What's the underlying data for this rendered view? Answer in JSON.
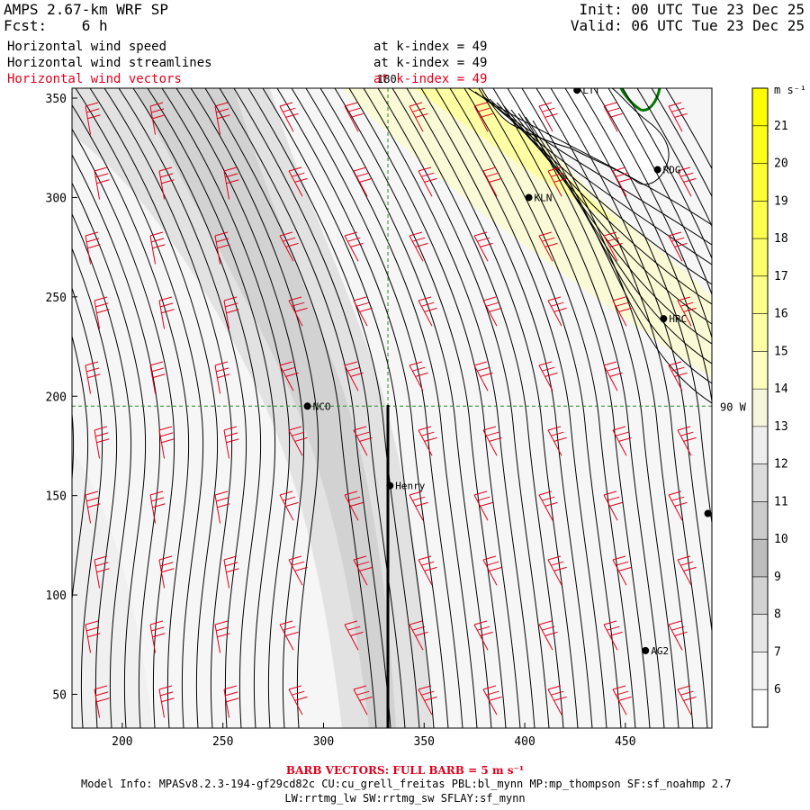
{
  "header": {
    "model": "AMPS 2.67-km WRF SP",
    "fcst_label": "Fcst:",
    "fcst_value": "6 h",
    "init": "Init: 00 UTC Tue 23 Dec 25",
    "valid": "Valid: 06 UTC Tue 23 Dec 25",
    "fields": [
      {
        "name": "Horizontal wind speed",
        "level": "at k-index = 49",
        "color": "#000000"
      },
      {
        "name": "Horizontal wind streamlines",
        "level": "at k-index = 49",
        "color": "#000000"
      },
      {
        "name": "Horizontal wind vectors",
        "level": "at k-index = 49",
        "color": "#e0001c"
      }
    ]
  },
  "map": {
    "x_ticks": [
      "200",
      "250",
      "300",
      "350",
      "400",
      "450"
    ],
    "y_ticks": [
      "350",
      "300",
      "250",
      "200",
      "150",
      "100",
      "50"
    ],
    "x_range": [
      175,
      493
    ],
    "y_range": [
      33,
      355
    ],
    "x_tick_values": [
      200,
      250,
      300,
      350,
      400,
      450
    ],
    "y_tick_values": [
      350,
      300,
      250,
      200,
      150,
      100,
      50
    ],
    "meridian_label": "180",
    "meridian_x": 332,
    "parallel_label": "90 W",
    "parallel_y": 195,
    "stations": [
      {
        "name": "NCO",
        "x": 292,
        "y": 195
      },
      {
        "name": "Henry",
        "x": 333,
        "y": 155
      },
      {
        "name": "KLN",
        "x": 402,
        "y": 300
      },
      {
        "name": "RDG",
        "x": 466,
        "y": 314
      },
      {
        "name": "HRC",
        "x": 469,
        "y": 239
      },
      {
        "name": "AG2",
        "x": 460,
        "y": 72
      },
      {
        "name": "LTT",
        "x": 426,
        "y": 354
      },
      {
        "name": "",
        "x": 491,
        "y": 141
      }
    ]
  },
  "colorbar": {
    "unit": "m s⁻¹",
    "levels": [
      "21",
      "20",
      "19",
      "18",
      "17",
      "16",
      "15",
      "14",
      "13",
      "12",
      "11",
      "10",
      "9",
      "8",
      "7",
      "6"
    ],
    "colors": [
      "#ffff00",
      "#ffff1c",
      "#ffff33",
      "#ffff4d",
      "#ffff6a",
      "#ffff8a",
      "#ffffa6",
      "#ffffc2",
      "#f6f6dc",
      "#eeeeee",
      "#dcdcdc",
      "#cccccc",
      "#bdbdbd",
      "#d2d2d2",
      "#e6e6e6",
      "#f3f3f3",
      "#ffffff"
    ]
  },
  "footer": {
    "barb_note": "BARB VECTORS: FULL BARB = 5 m s⁻¹",
    "model_info": "Model Info: MPASv8.2.3-194-gf29cd82c CU:cu_grell_freitas PBL:bl_mynn MP:mp_thompson SF:sf_noahmp 2.7",
    "model_info2": "LW:rrtmg_lw SW:rrtmg_sw SFLAY:sf_mynn"
  }
}
